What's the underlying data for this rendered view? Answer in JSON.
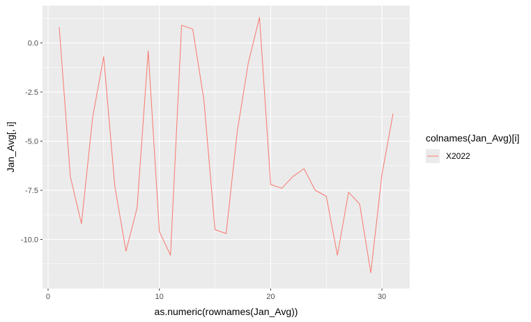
{
  "chart_data": {
    "type": "line",
    "xlabel": "as.numeric(rownames(Jan_Avg))",
    "ylabel": "Jan_Avg[, i]",
    "xlim": [
      -0.5,
      32.5
    ],
    "ylim": [
      -12.5,
      1.9
    ],
    "x_ticks": [
      0,
      10,
      20,
      30
    ],
    "x_tick_labels": [
      "0",
      "10",
      "20",
      "30"
    ],
    "y_ticks": [
      0.0,
      -2.5,
      -5.0,
      -7.5,
      -10.0
    ],
    "y_tick_labels": [
      "0.0",
      "-2.5",
      "-5.0",
      "-7.5",
      "-10.0"
    ],
    "grid": true,
    "legend": {
      "title": "colnames(Jan_Avg)[i]",
      "position": "right"
    },
    "series": [
      {
        "name": "X2022",
        "color": "#F8766D",
        "x": [
          1,
          2,
          3,
          4,
          5,
          6,
          7,
          8,
          9,
          10,
          11,
          12,
          13,
          14,
          15,
          16,
          17,
          18,
          19,
          20,
          21,
          22,
          23,
          24,
          25,
          26,
          27,
          28,
          29,
          30,
          31
        ],
        "values": [
          0.8,
          -6.8,
          -9.2,
          -3.8,
          -0.7,
          -7.3,
          -10.6,
          -8.4,
          -0.4,
          -9.6,
          -10.8,
          0.9,
          0.7,
          -2.9,
          -9.5,
          -9.7,
          -4.5,
          -1.0,
          1.3,
          -7.2,
          -7.4,
          -6.8,
          -6.4,
          -7.5,
          -7.8,
          -10.8,
          -7.6,
          -8.2,
          -11.7,
          -6.7,
          -3.6
        ]
      }
    ]
  }
}
